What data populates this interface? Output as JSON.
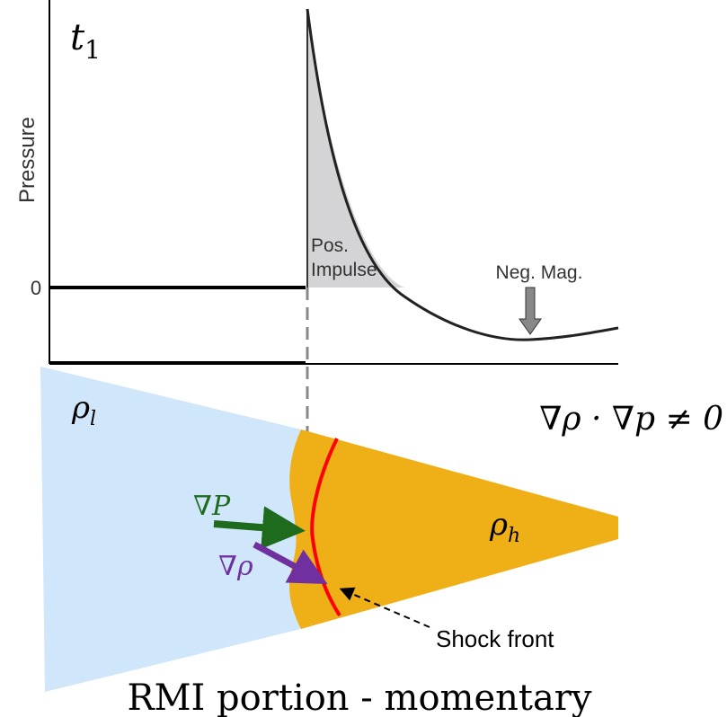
{
  "plot": {
    "time_label": {
      "symbol": "t",
      "subscript": "1"
    },
    "y_axis_label": "Pressure",
    "zero_label": "0",
    "positive_impulse": [
      "Pos.",
      "Impulse"
    ],
    "negative_magnitude": "Neg. Mag."
  },
  "regions": {
    "light": {
      "symbol": "ρ",
      "subscript": "l"
    },
    "heavy": {
      "symbol": "ρ",
      "subscript": "h"
    }
  },
  "condition": "∇ρ · ∇p ≠ 0",
  "arrows": {
    "pressure_gradient": "∇P",
    "density_gradient": "∇ρ",
    "shock_front": "Shock front"
  },
  "caption": "RMI portion - momentary"
}
